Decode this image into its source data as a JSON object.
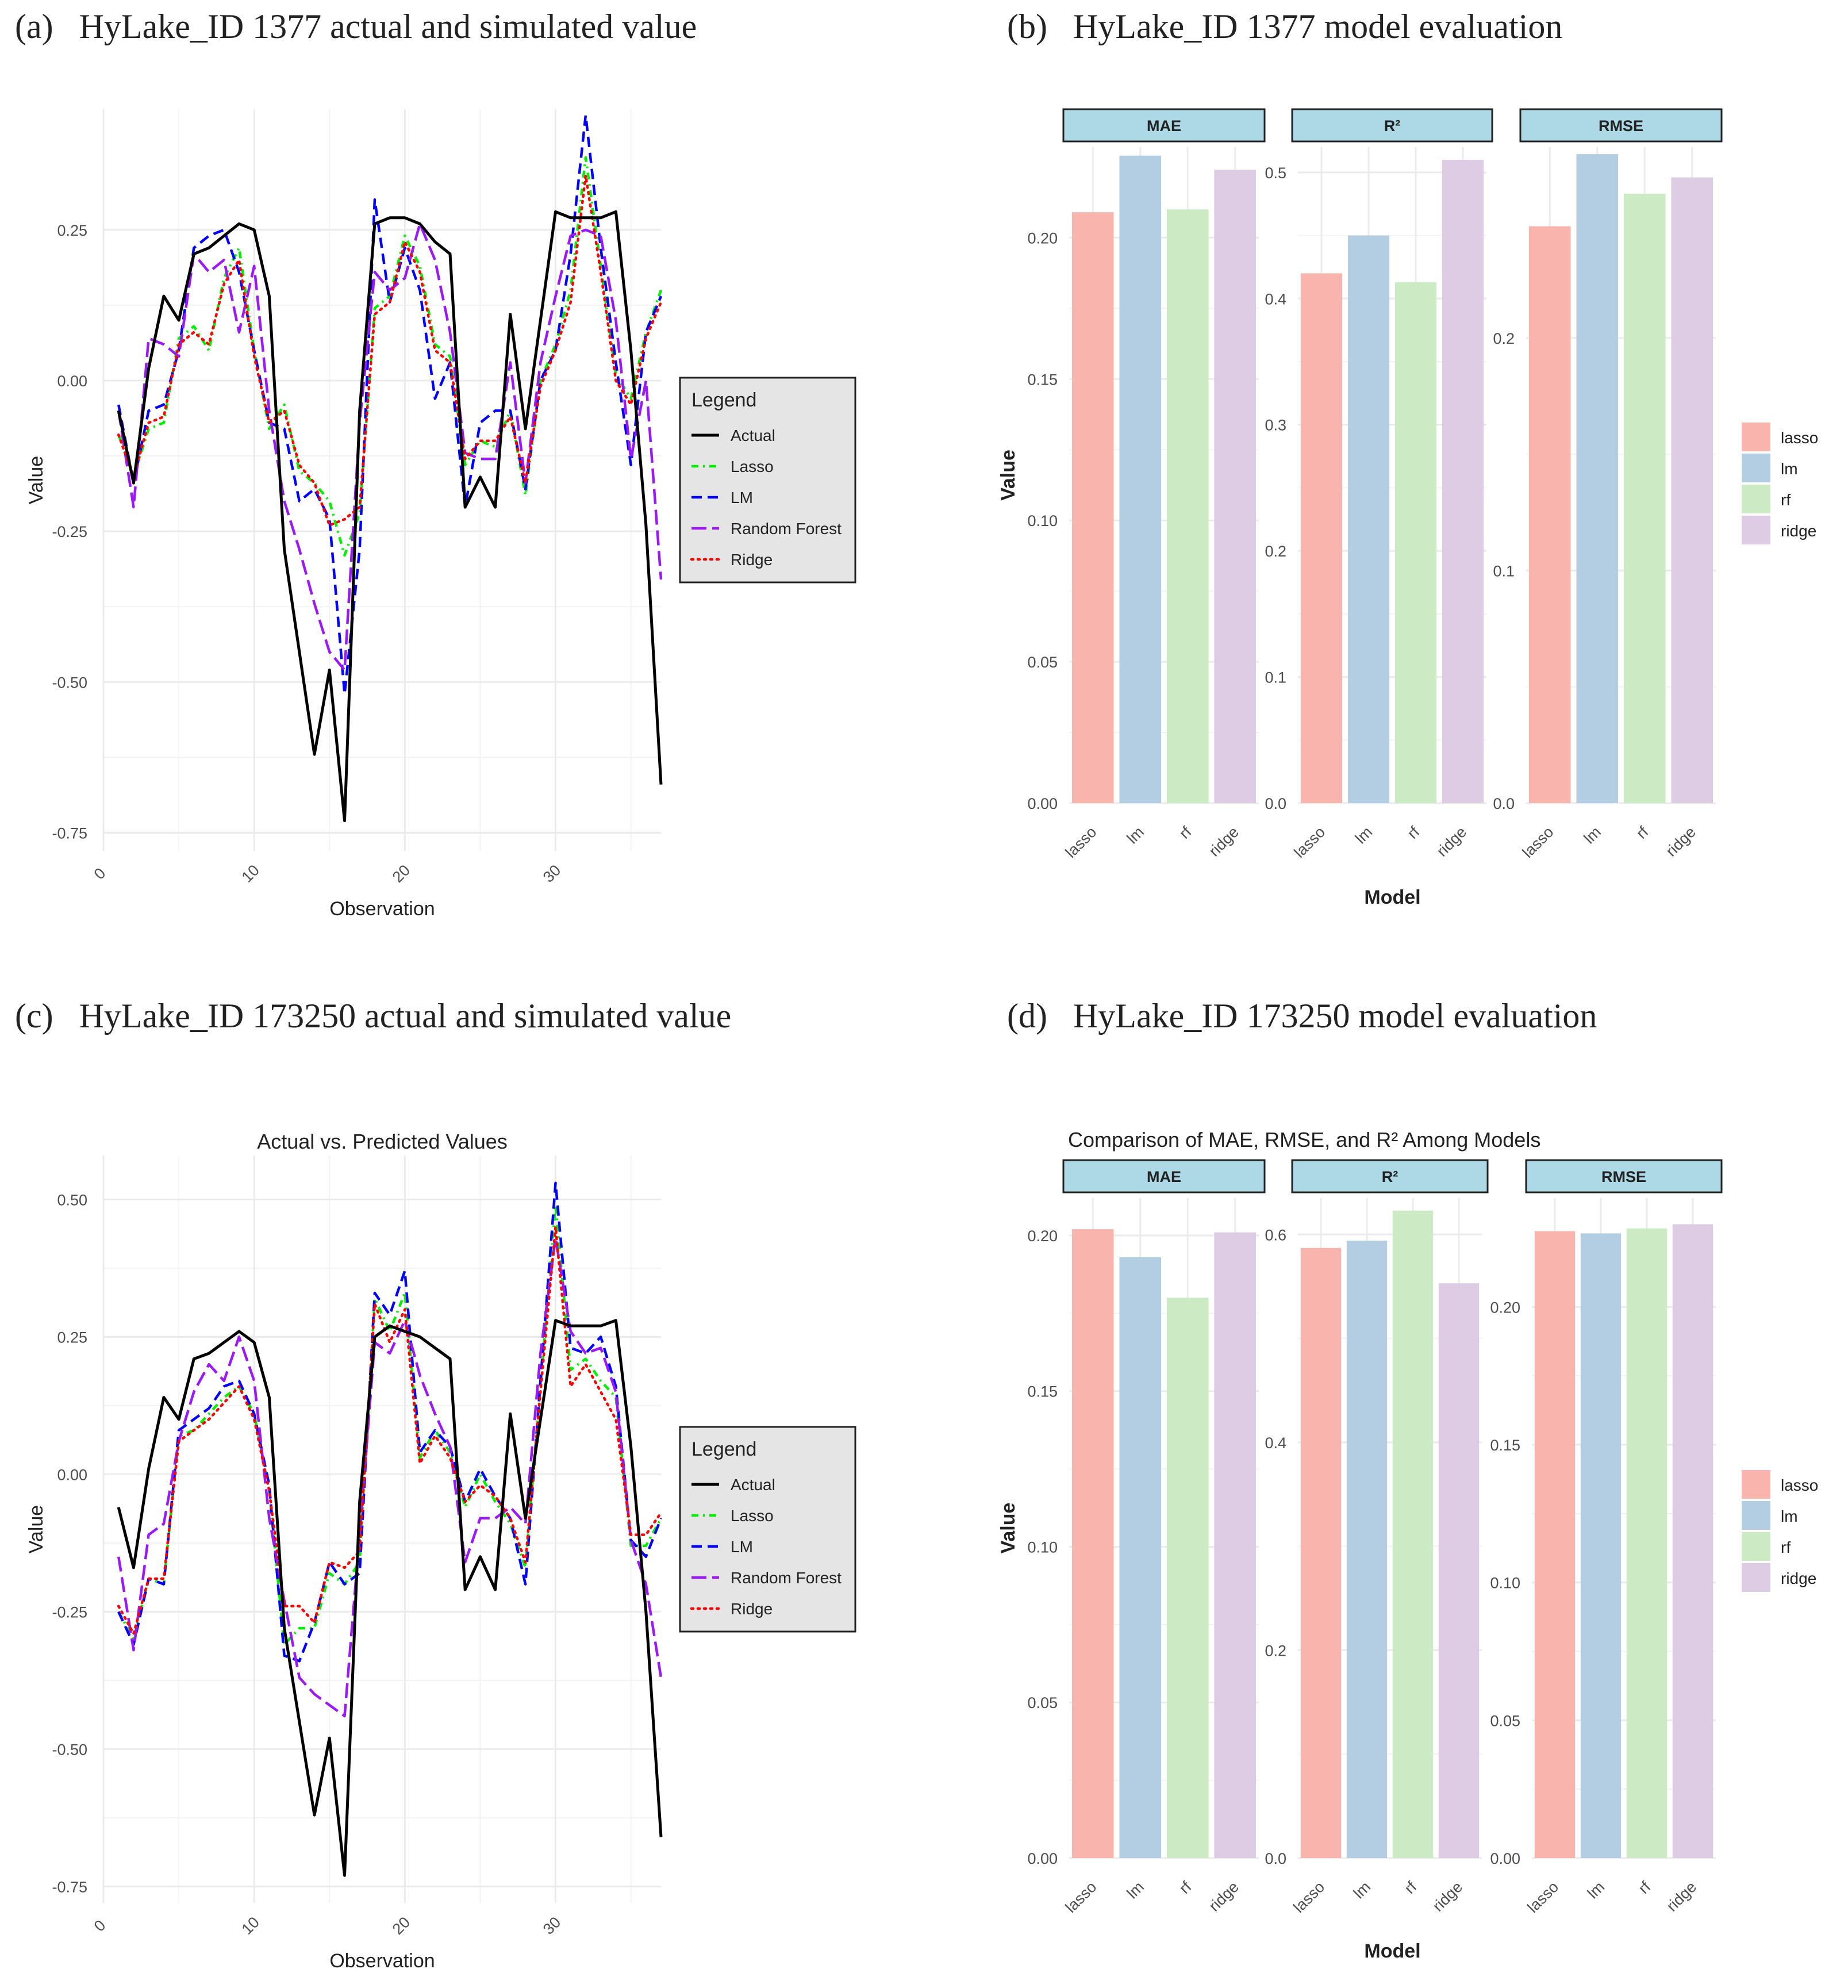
{
  "figure": {
    "panel_titles": [
      "(a)   HyLake_ID 1377 actual and simulated value",
      "(b)   HyLake_ID 1377 model evaluation",
      "(c)   HyLake_ID 173250 actual and simulated value",
      "(d)   HyLake_ID 173250 model evaluation"
    ]
  },
  "colors": {
    "Actual": "#000000",
    "Lasso": "#00ee00",
    "LM": "#0000ff",
    "Random Forest": "#9b19f5",
    "Ridge": "#ff0000",
    "lasso": "#f9b4ae",
    "lm": "#b3cde3",
    "rf": "#ccebc5",
    "ridge": "#decbe4",
    "strip": "#add8e6",
    "legend_bg": "#e5e5e5",
    "grid": "#ebebeb"
  },
  "chart_data": [
    {
      "id": "a",
      "type": "line",
      "title": "",
      "xlabel": "Observation",
      "ylabel": "Value",
      "xlim": [
        0,
        37
      ],
      "ylim": [
        -0.78,
        0.45
      ],
      "xticks": [
        0,
        10,
        20,
        30
      ],
      "yticks": [
        -0.75,
        -0.5,
        -0.25,
        0.0,
        0.25
      ],
      "ytick_labels": [
        "-0.75",
        "-0.50",
        "-0.25",
        "0.00",
        "0.25"
      ],
      "legend_title": "Legend",
      "legend_position": "right",
      "x": [
        1,
        2,
        3,
        4,
        5,
        6,
        7,
        8,
        9,
        10,
        11,
        12,
        13,
        14,
        15,
        16,
        17,
        18,
        19,
        20,
        21,
        22,
        23,
        24,
        25,
        26,
        27,
        28,
        29,
        30,
        31,
        32,
        33,
        34,
        35,
        36,
        37
      ],
      "series": [
        {
          "name": "Actual",
          "dash": "",
          "values": [
            -0.05,
            -0.17,
            0.02,
            0.14,
            0.1,
            0.21,
            0.22,
            0.24,
            0.26,
            0.25,
            0.14,
            -0.28,
            -0.45,
            -0.62,
            -0.48,
            -0.73,
            -0.05,
            0.26,
            0.27,
            0.27,
            0.26,
            0.23,
            0.21,
            -0.21,
            -0.16,
            -0.21,
            0.11,
            -0.08,
            0.1,
            0.28,
            0.27,
            0.27,
            0.27,
            0.28,
            0.05,
            -0.24,
            -0.67
          ]
        },
        {
          "name": "Lasso",
          "dash": "12,8,3,8",
          "values": [
            -0.09,
            -0.16,
            -0.08,
            -0.07,
            0.07,
            0.09,
            0.05,
            0.17,
            0.22,
            0.05,
            -0.08,
            -0.04,
            -0.15,
            -0.17,
            -0.2,
            -0.29,
            -0.22,
            0.12,
            0.14,
            0.24,
            0.19,
            0.06,
            0.04,
            -0.14,
            -0.1,
            -0.11,
            -0.05,
            -0.19,
            0.0,
            0.06,
            0.15,
            0.37,
            0.19,
            0.01,
            -0.03,
            0.08,
            0.15
          ]
        },
        {
          "name": "LM",
          "dash": "18,10",
          "values": [
            -0.04,
            -0.17,
            -0.05,
            -0.04,
            0.05,
            0.22,
            0.24,
            0.25,
            0.18,
            0.05,
            -0.07,
            -0.08,
            -0.2,
            -0.18,
            -0.23,
            -0.52,
            -0.28,
            0.3,
            0.13,
            0.22,
            0.15,
            -0.03,
            0.03,
            -0.21,
            -0.07,
            -0.05,
            -0.05,
            -0.18,
            0.0,
            0.05,
            0.21,
            0.44,
            0.22,
            0.03,
            -0.14,
            0.08,
            0.14
          ]
        },
        {
          "name": "Random Forest",
          "dash": "26,10",
          "values": [
            -0.05,
            -0.21,
            0.07,
            0.06,
            0.04,
            0.21,
            0.18,
            0.2,
            0.08,
            0.19,
            -0.05,
            -0.2,
            -0.28,
            -0.37,
            -0.45,
            -0.48,
            -0.07,
            0.18,
            0.15,
            0.17,
            0.26,
            0.2,
            0.08,
            -0.12,
            -0.13,
            -0.13,
            0.03,
            -0.17,
            0.03,
            0.14,
            0.24,
            0.25,
            0.24,
            0.1,
            -0.13,
            0.0,
            -0.33
          ]
        },
        {
          "name": "Ridge",
          "dash": "3,8",
          "values": [
            -0.09,
            -0.16,
            -0.07,
            -0.06,
            0.06,
            0.08,
            0.06,
            0.16,
            0.2,
            0.04,
            -0.07,
            -0.05,
            -0.14,
            -0.17,
            -0.24,
            -0.23,
            -0.21,
            0.11,
            0.13,
            0.23,
            0.18,
            0.05,
            0.03,
            -0.13,
            -0.1,
            -0.1,
            -0.06,
            -0.17,
            -0.01,
            0.05,
            0.13,
            0.34,
            0.18,
            0.0,
            -0.04,
            0.07,
            0.13
          ]
        }
      ]
    },
    {
      "id": "b",
      "type": "bar",
      "title": "",
      "xlabel": "Model",
      "ylabel": "Value",
      "categories": [
        "lasso",
        "lm",
        "rf",
        "ridge"
      ],
      "legend_position": "right",
      "facets": [
        {
          "name": "MAE",
          "ylim": [
            0,
            0.232
          ],
          "yticks": [
            0.0,
            0.05,
            0.1,
            0.15,
            0.2
          ],
          "ytick_labels": [
            "0.00",
            "0.05",
            "0.10",
            "0.15",
            "0.20"
          ],
          "values": [
            0.209,
            0.229,
            0.21,
            0.224
          ]
        },
        {
          "name": "R²",
          "ylim": [
            0,
            0.52
          ],
          "yticks": [
            0.0,
            0.1,
            0.2,
            0.3,
            0.4,
            0.5
          ],
          "ytick_labels": [
            "0.0",
            "0.1",
            "0.2",
            "0.3",
            "0.4",
            "0.5"
          ],
          "values": [
            0.42,
            0.45,
            0.413,
            0.51
          ]
        },
        {
          "name": "RMSE",
          "ylim": [
            0,
            0.282
          ],
          "yticks": [
            0.0,
            0.1,
            0.2
          ],
          "ytick_labels": [
            "0.0",
            "0.1",
            "0.2"
          ],
          "values": [
            0.248,
            0.279,
            0.262,
            0.269
          ]
        }
      ]
    },
    {
      "id": "c",
      "type": "line",
      "title": "Actual vs. Predicted Values",
      "xlabel": "Observation",
      "ylabel": "Value",
      "xlim": [
        0,
        37
      ],
      "ylim": [
        -0.78,
        0.58
      ],
      "xticks": [
        0,
        10,
        20,
        30
      ],
      "yticks": [
        -0.75,
        -0.5,
        -0.25,
        0.0,
        0.25,
        0.5
      ],
      "ytick_labels": [
        "-0.75",
        "-0.50",
        "-0.25",
        "0.00",
        "0.25",
        "0.50"
      ],
      "legend_title": "Legend",
      "legend_position": "right",
      "x": [
        1,
        2,
        3,
        4,
        5,
        6,
        7,
        8,
        9,
        10,
        11,
        12,
        13,
        14,
        15,
        16,
        17,
        18,
        19,
        20,
        21,
        22,
        23,
        24,
        25,
        26,
        27,
        28,
        29,
        30,
        31,
        32,
        33,
        34,
        35,
        36,
        37
      ],
      "series": [
        {
          "name": "Actual",
          "dash": "",
          "values": [
            -0.06,
            -0.17,
            0.01,
            0.14,
            0.1,
            0.21,
            0.22,
            0.24,
            0.26,
            0.24,
            0.14,
            -0.28,
            -0.45,
            -0.62,
            -0.48,
            -0.73,
            -0.05,
            0.25,
            0.27,
            0.26,
            0.25,
            0.23,
            0.21,
            -0.21,
            -0.15,
            -0.21,
            0.11,
            -0.08,
            0.1,
            0.28,
            0.27,
            0.27,
            0.27,
            0.28,
            0.05,
            -0.25,
            -0.66
          ]
        },
        {
          "name": "Lasso",
          "dash": "12,8,3,8",
          "values": [
            -0.25,
            -0.3,
            -0.19,
            -0.2,
            0.07,
            0.08,
            0.11,
            0.14,
            0.16,
            0.11,
            -0.03,
            -0.31,
            -0.28,
            -0.28,
            -0.18,
            -0.2,
            -0.16,
            0.32,
            0.26,
            0.33,
            0.03,
            0.08,
            0.04,
            -0.06,
            0.0,
            -0.05,
            -0.09,
            -0.17,
            0.16,
            0.49,
            0.19,
            0.21,
            0.17,
            0.14,
            -0.13,
            -0.13,
            -0.08
          ]
        },
        {
          "name": "LM",
          "dash": "18,10",
          "values": [
            -0.25,
            -0.31,
            -0.19,
            -0.2,
            0.08,
            0.1,
            0.12,
            0.16,
            0.17,
            0.11,
            -0.02,
            -0.33,
            -0.34,
            -0.27,
            -0.16,
            -0.2,
            -0.18,
            0.33,
            0.29,
            0.37,
            0.04,
            0.08,
            0.05,
            -0.05,
            0.01,
            -0.04,
            -0.08,
            -0.2,
            0.17,
            0.53,
            0.23,
            0.22,
            0.25,
            0.16,
            -0.12,
            -0.15,
            -0.08
          ]
        },
        {
          "name": "Random Forest",
          "dash": "26,10",
          "values": [
            -0.15,
            -0.32,
            -0.11,
            -0.09,
            0.06,
            0.15,
            0.2,
            0.17,
            0.25,
            0.17,
            -0.08,
            -0.23,
            -0.37,
            -0.4,
            -0.42,
            -0.44,
            -0.11,
            0.24,
            0.22,
            0.28,
            0.18,
            0.11,
            0.05,
            -0.16,
            -0.08,
            -0.08,
            -0.06,
            -0.09,
            0.22,
            0.43,
            0.26,
            0.22,
            0.23,
            0.15,
            -0.12,
            -0.2,
            -0.37
          ]
        },
        {
          "name": "Ridge",
          "dash": "3,8",
          "values": [
            -0.24,
            -0.29,
            -0.19,
            -0.19,
            0.06,
            0.08,
            0.1,
            0.13,
            0.16,
            0.1,
            -0.03,
            -0.24,
            -0.24,
            -0.27,
            -0.16,
            -0.17,
            -0.14,
            0.31,
            0.24,
            0.3,
            0.02,
            0.07,
            0.03,
            -0.05,
            -0.02,
            -0.04,
            -0.08,
            -0.16,
            0.15,
            0.45,
            0.16,
            0.2,
            0.15,
            0.1,
            -0.11,
            -0.11,
            -0.07
          ]
        }
      ]
    },
    {
      "id": "d",
      "type": "bar",
      "title": "Comparison of MAE, RMSE, and R² Among Models",
      "xlabel": "Model",
      "ylabel": "Value",
      "categories": [
        "lasso",
        "lm",
        "rf",
        "ridge"
      ],
      "legend_position": "right",
      "facets": [
        {
          "name": "MAE",
          "ylim": [
            0,
            0.212
          ],
          "yticks": [
            0.0,
            0.05,
            0.1,
            0.15,
            0.2
          ],
          "ytick_labels": [
            "0.00",
            "0.05",
            "0.10",
            "0.15",
            "0.20"
          ],
          "values": [
            0.202,
            0.193,
            0.18,
            0.201
          ]
        },
        {
          "name": "R²",
          "ylim": [
            0,
            0.635
          ],
          "yticks": [
            0.0,
            0.2,
            0.4,
            0.6
          ],
          "ytick_labels": [
            "0.0",
            "0.2",
            "0.4",
            "0.6"
          ],
          "values": [
            0.587,
            0.594,
            0.623,
            0.553
          ]
        },
        {
          "name": "RMSE",
          "ylim": [
            0,
            0.2395
          ],
          "yticks": [
            0.0,
            0.05,
            0.1,
            0.15,
            0.2
          ],
          "ytick_labels": [
            "0.00",
            "0.05",
            "0.10",
            "0.15",
            "0.20"
          ],
          "values": [
            0.2275,
            0.2267,
            0.2285,
            0.23
          ]
        }
      ]
    }
  ]
}
